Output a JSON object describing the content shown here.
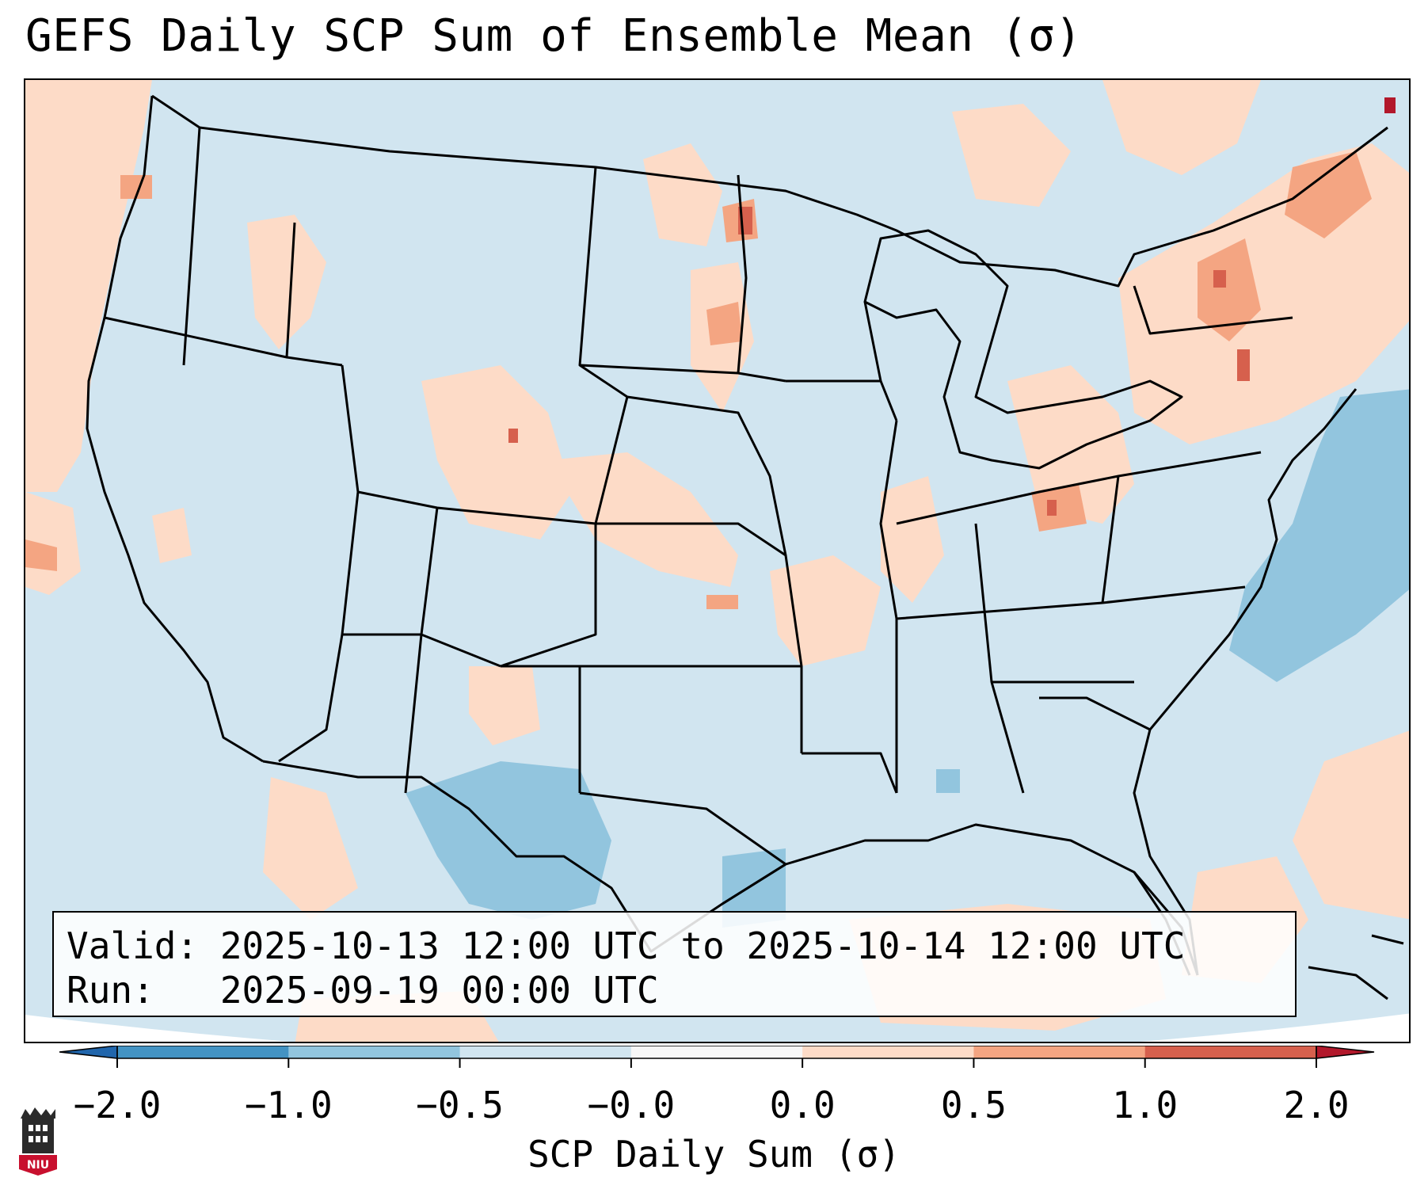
{
  "title": "GEFS Daily SCP Sum of Ensemble Mean (σ)",
  "info": {
    "valid_line": "Valid: 2025-10-13 12:00 UTC to 2025-10-14 12:00 UTC",
    "run_line": "Run:   2025-09-19 00:00 UTC"
  },
  "colorbar": {
    "label": "SCP Daily Sum (σ)",
    "ticks": [
      "−2.0",
      "−1.0",
      "−0.5",
      "−0.0",
      "0.0",
      "0.5",
      "1.0",
      "2.0"
    ],
    "colors": [
      "#4393c3",
      "#92c5de",
      "#d1e5f0",
      "#f7f7f7",
      "#fddbc7",
      "#f4a582",
      "#d6604d"
    ],
    "extend_min_color": "#2166ac",
    "extend_max_color": "#b2182b"
  },
  "map": {
    "region": "Continental United States",
    "background_color": "#d1e5f0",
    "positive_color": "#fddbc7",
    "moderate_color": "#f4a582",
    "strong_color": "#d6604d",
    "negative_color": "#92c5de"
  },
  "logo": {
    "text": "NIU",
    "color": "#c8102e"
  }
}
